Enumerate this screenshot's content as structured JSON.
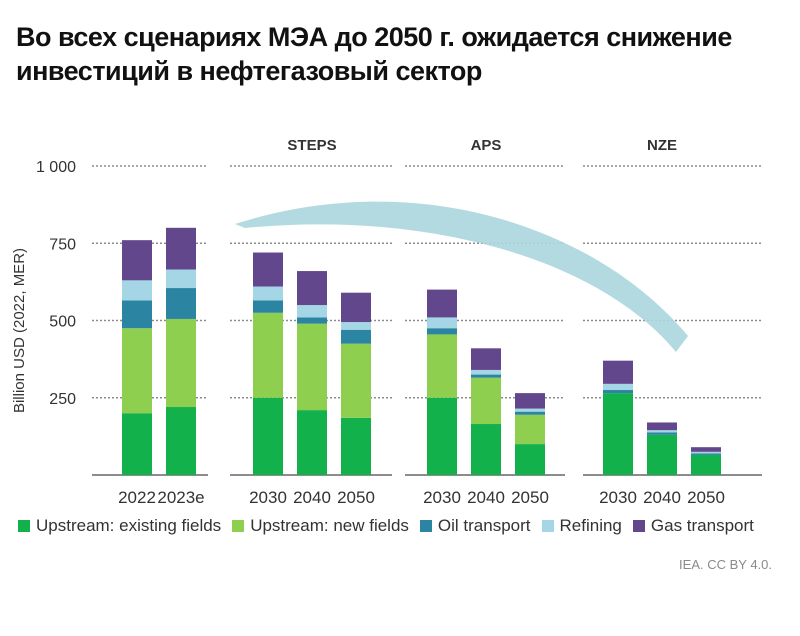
{
  "title": {
    "line1": "Во всех сценариях МЭА до 2050 г. ожидается снижение",
    "line2": "инвестиций в нефтегазовый сектор"
  },
  "chart_data": {
    "type": "bar",
    "stacked": true,
    "ylabel": "Billion USD (2022, MER)",
    "ylim": [
      0,
      1000
    ],
    "yticks": [
      {
        "value": 250,
        "label": "250"
      },
      {
        "value": 500,
        "label": "500"
      },
      {
        "value": 750,
        "label": "750"
      },
      {
        "value": 1000,
        "label": "1 000"
      }
    ],
    "grid": "dotted horizontal",
    "groups": [
      {
        "name": "",
        "categories": [
          "2022",
          "2023e"
        ]
      },
      {
        "name": "STEPS",
        "categories": [
          "2030",
          "2040",
          "2050"
        ]
      },
      {
        "name": "APS",
        "categories": [
          "2030",
          "2040",
          "2050"
        ]
      },
      {
        "name": "NZE",
        "categories": [
          "2030",
          "2040",
          "2050"
        ]
      }
    ],
    "series": [
      {
        "name": "Upstream: existing fields",
        "color": "#13b14c",
        "values": [
          200,
          220,
          250,
          210,
          185,
          250,
          165,
          100,
          265,
          130,
          65
        ]
      },
      {
        "name": "Upstream: new fields",
        "color": "#8fcf4f",
        "values": [
          275,
          285,
          275,
          280,
          240,
          205,
          150,
          95,
          0,
          0,
          0
        ]
      },
      {
        "name": "Oil transport",
        "color": "#2a84a2",
        "values": [
          90,
          100,
          40,
          20,
          45,
          20,
          10,
          10,
          10,
          8,
          5
        ]
      },
      {
        "name": "Refining",
        "color": "#a4d6e5",
        "values": [
          65,
          60,
          45,
          40,
          25,
          35,
          15,
          10,
          20,
          7,
          5
        ]
      },
      {
        "name": "Gas transport",
        "color": "#63478d",
        "values": [
          130,
          135,
          110,
          110,
          95,
          90,
          70,
          50,
          75,
          25,
          15
        ]
      }
    ],
    "annotation": "arrow indicating decline",
    "legend_position": "bottom",
    "source": "IEA. CC BY 4.0."
  }
}
